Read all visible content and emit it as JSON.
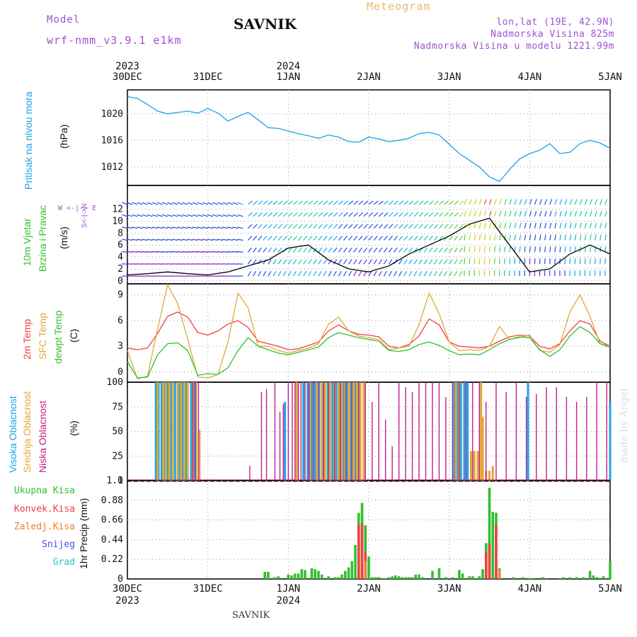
{
  "header": {
    "meteogram": "Meteogram",
    "station": "SAVNIK",
    "model_label": "Model",
    "model_name": "wrf-nmm_v3.9.1  e1km",
    "lonlat": "lon,lat (19E, 42.9N)",
    "altitude": "Nadmorska Visina 825m",
    "model_altitude": "Nadmorska Visina u modelu 1221.99m"
  },
  "footer": "SAVNIK",
  "watermark": "made by Angel",
  "time_axis": {
    "year_start": "2023",
    "year_mid": "2024",
    "labels": [
      "30DEC",
      "31DEC",
      "1JAN",
      "2JAN",
      "3JAN",
      "4JAN",
      "5JAN"
    ]
  },
  "panel_labels": {
    "pressure": {
      "name": "Pritisak na nivou mora",
      "unit": "(hPa)"
    },
    "wind": {
      "name1": "10m Vjetar",
      "name2": "Brzina i Pravac",
      "unit": "(m/s)",
      "compass": "W  <-|->  E",
      "compass_ns": "S<-|->N"
    },
    "temp": {
      "t2m": "2m Temp",
      "sfc": "SFC Temp",
      "dew": "dewpt Temp",
      "unit": "(C)"
    },
    "cloud": {
      "high": "Visoka Oblacnost",
      "mid": "Srednja Oblacnost",
      "low": "Niska  Oblacnost",
      "unit": "(%)"
    },
    "precip": {
      "total": "Ukupna Kisa",
      "conv": "Konvek.Kisa",
      "frozen": "Zaledj.Kisa",
      "snow": "Snijeg",
      "hail": "Grad",
      "unit": "1hr Precip (mm)"
    }
  },
  "colors": {
    "pressure": "#1aa3e8",
    "t2m": "#f04040",
    "sfc": "#e0a838",
    "dew": "#30c030",
    "high": "#1aa3e8",
    "mid": "#e0a838",
    "low": "#c0208a",
    "total": "#30c030",
    "conv": "#f04040",
    "frozen": "#f08030",
    "snow": "#5050e0",
    "hail": "#30c0c0"
  },
  "chart_data": [
    {
      "type": "line",
      "name": "pressure",
      "ylabel": "Pritisak na nivou mora (hPa)",
      "yticks": [
        1012,
        1016,
        1020
      ],
      "ylim": [
        1009.2,
        1023.6
      ],
      "x_hours": [
        0,
        3,
        6,
        9,
        12,
        15,
        18,
        21,
        24,
        27,
        30,
        33,
        36,
        39,
        42,
        45,
        48,
        51,
        54,
        57,
        60,
        63,
        66,
        69,
        72,
        75,
        78,
        81,
        84,
        87,
        90,
        93,
        96,
        99,
        102,
        105,
        108,
        111,
        114,
        117,
        120,
        123,
        126,
        129,
        132,
        135,
        138,
        141,
        144
      ],
      "values": [
        1022.6,
        1022.3,
        1021.4,
        1020.4,
        1020.0,
        1020.2,
        1020.4,
        1020.1,
        1020.8,
        1020.1,
        1018.9,
        1019.6,
        1020.2,
        1019.1,
        1017.9,
        1017.8,
        1017.4,
        1017.0,
        1016.7,
        1016.3,
        1016.8,
        1016.5,
        1015.8,
        1015.7,
        1016.5,
        1016.2,
        1015.8,
        1016.0,
        1016.3,
        1017.0,
        1017.2,
        1016.8,
        1015.4,
        1014.0,
        1013.0,
        1012.0,
        1010.5,
        1009.8,
        1011.6,
        1013.2,
        1014.0,
        1014.5,
        1015.5,
        1014.0,
        1014.2,
        1015.5,
        1016.0,
        1015.6,
        1014.8
      ]
    },
    {
      "type": "line",
      "name": "wind-speed",
      "ylabel": "10m Vjetar Brzina i Pravac (m/s)",
      "yticks": [
        0,
        2,
        4,
        6,
        8,
        10,
        12
      ],
      "ylim": [
        -0.5,
        16
      ],
      "x_hours": [
        0,
        6,
        12,
        18,
        24,
        30,
        36,
        42,
        48,
        54,
        60,
        66,
        72,
        78,
        84,
        90,
        96,
        102,
        108,
        114,
        120,
        126,
        132,
        138,
        144
      ],
      "values": [
        1.0,
        1.2,
        1.5,
        1.2,
        1.0,
        1.5,
        2.5,
        3.5,
        5.5,
        6.0,
        3.5,
        2.0,
        1.5,
        2.5,
        4.5,
        6.0,
        7.5,
        9.5,
        10.5,
        6.0,
        1.5,
        2.0,
        4.5,
        6.0,
        4.5
      ]
    },
    {
      "type": "line",
      "name": "temperature",
      "ylabel": "2m Temp SFC Temp dewpt Temp (C)",
      "yticks": [
        0,
        3,
        6,
        9
      ],
      "ylim": [
        -1.2,
        10.3
      ],
      "x_hours": [
        0,
        3,
        6,
        9,
        12,
        15,
        18,
        21,
        24,
        27,
        30,
        33,
        36,
        39,
        42,
        45,
        48,
        51,
        54,
        57,
        60,
        63,
        66,
        69,
        72,
        75,
        78,
        81,
        84,
        87,
        90,
        93,
        96,
        99,
        102,
        105,
        108,
        111,
        114,
        117,
        120,
        123,
        126,
        129,
        132,
        135,
        138,
        141,
        144
      ],
      "series": [
        {
          "name": "2m Temp",
          "values": [
            2.8,
            2.6,
            2.8,
            4.5,
            6.5,
            7.0,
            6.4,
            4.6,
            4.3,
            4.8,
            5.6,
            6.0,
            5.2,
            3.6,
            3.3,
            3.0,
            2.6,
            2.7,
            3.1,
            3.5,
            4.8,
            5.5,
            4.8,
            4.4,
            4.3,
            4.1,
            3.0,
            2.8,
            3.2,
            4.2,
            6.2,
            5.5,
            3.5,
            3.0,
            2.9,
            2.8,
            3.0,
            3.6,
            4.1,
            4.3,
            4.2,
            3.0,
            2.7,
            3.3,
            4.8,
            6.0,
            5.6,
            3.6,
            3.0
          ]
        },
        {
          "name": "SFC Temp",
          "values": [
            2.5,
            -0.8,
            -0.5,
            5.0,
            10.2,
            8.0,
            3.8,
            -0.6,
            -0.7,
            -0.3,
            3.5,
            9.2,
            7.5,
            3.0,
            3.0,
            2.5,
            2.2,
            2.5,
            2.8,
            3.3,
            5.6,
            6.4,
            4.8,
            4.2,
            4.0,
            3.8,
            2.6,
            2.8,
            3.0,
            5.5,
            9.2,
            6.8,
            3.5,
            2.5,
            2.6,
            2.5,
            3.0,
            5.3,
            3.8,
            4.0,
            4.3,
            2.5,
            2.3,
            3.2,
            7.0,
            9.0,
            6.5,
            3.3,
            2.8
          ]
        },
        {
          "name": "dewpt Temp",
          "values": [
            1.2,
            -0.7,
            -0.6,
            2.0,
            3.3,
            3.4,
            2.5,
            -0.4,
            -0.2,
            -0.3,
            0.5,
            2.5,
            4.0,
            3.0,
            2.6,
            2.2,
            2.0,
            2.3,
            2.6,
            2.9,
            4.0,
            4.6,
            4.3,
            4.0,
            3.8,
            3.6,
            2.5,
            2.4,
            2.6,
            3.2,
            3.5,
            3.1,
            2.5,
            2.0,
            2.1,
            2.0,
            2.6,
            3.3,
            3.8,
            4.1,
            4.0,
            2.6,
            1.8,
            2.6,
            4.2,
            5.3,
            4.6,
            3.3,
            3.0
          ]
        }
      ]
    },
    {
      "type": "bar",
      "name": "cloud-cover",
      "ylabel": "Visoka Oblacnost Srednja Oblacnost Niska Oblacnost (%)",
      "yticks": [
        0,
        25,
        50,
        75,
        100
      ],
      "ylim": [
        0,
        100
      ],
      "series": [
        {
          "name": "Visoka Oblacnost",
          "x_hours": [
            8.5,
            9.3,
            10.2,
            11.0,
            12.0,
            13.0,
            14.2,
            15.5,
            16.5,
            17.5,
            19.0,
            20.0,
            47.0,
            52.5,
            53.8,
            55.0,
            56.0,
            57.2,
            58.5,
            59.8,
            61.2,
            62.3,
            63.5,
            64.5,
            65.5,
            66.8,
            68.0,
            69.0,
            97.5,
            98.5,
            99.5,
            100.5,
            101.5,
            119.5,
            144.0
          ],
          "values": [
            100,
            100,
            100,
            100,
            100,
            100,
            100,
            100,
            100,
            100,
            100,
            100,
            80,
            100,
            100,
            100,
            100,
            100,
            100,
            100,
            100,
            100,
            100,
            100,
            100,
            100,
            100,
            100,
            100,
            100,
            100,
            100,
            100,
            100,
            80
          ]
        },
        {
          "name": "Srednja Oblacnost",
          "x_hours": [
            9.0,
            10.7,
            11.5,
            12.5,
            13.5,
            15.0,
            16.0,
            17.0,
            18.0,
            19.5,
            20.5,
            21.5,
            50.5,
            54.5,
            56.5,
            58.0,
            59.0,
            60.5,
            61.8,
            63.0,
            64.0,
            65.0,
            66.2,
            67.5,
            68.5,
            69.5,
            70.5,
            98.0,
            99.0,
            102.5,
            103.5,
            104.5,
            105.5,
            106.0,
            107.0,
            108.0,
            109.0
          ],
          "values": [
            100,
            100,
            100,
            100,
            100,
            100,
            100,
            100,
            100,
            100,
            100,
            52,
            100,
            100,
            100,
            100,
            100,
            100,
            100,
            100,
            100,
            100,
            100,
            100,
            100,
            100,
            100,
            100,
            100,
            30,
            30,
            30,
            100,
            65,
            10,
            10,
            15
          ]
        },
        {
          "name": "Niska Oblacnost",
          "x_hours": [
            19.5,
            20.3,
            21.2,
            36.5,
            40.0,
            41.5,
            44.0,
            45.5,
            46.5,
            48.0,
            49.2,
            50.0,
            51.0,
            51.8,
            53.0,
            54.2,
            55.5,
            57.0,
            58.5,
            60.0,
            61.8,
            63.5,
            65.2,
            67.0,
            69.0,
            71.0,
            73.0,
            75.0,
            77.0,
            79.0,
            81.0,
            83.0,
            85.0,
            87.0,
            89.0,
            91.0,
            93.0,
            95.0,
            97.0,
            99.0,
            101.0,
            103.0,
            105.0,
            107.0,
            110.0,
            113.0,
            116.0,
            119.0,
            122.0,
            125.0,
            128.0,
            131.0,
            134.0,
            137.0,
            140.0,
            143.0
          ],
          "values": [
            100,
            100,
            100,
            15,
            90,
            93,
            100,
            70,
            78,
            100,
            100,
            100,
            100,
            100,
            100,
            100,
            100,
            100,
            100,
            100,
            100,
            100,
            100,
            100,
            100,
            100,
            80,
            100,
            62,
            35,
            100,
            95,
            90,
            100,
            100,
            100,
            100,
            85,
            100,
            100,
            100,
            100,
            100,
            80,
            100,
            90,
            100,
            85,
            88,
            95,
            95,
            85,
            80,
            85,
            100,
            100
          ]
        }
      ]
    },
    {
      "type": "bar",
      "name": "precipitation",
      "ylabel": "1hr Precip (mm)",
      "yticks": [
        0,
        0.22,
        0.44,
        0.66,
        0.88,
        1.1
      ],
      "ylim": [
        0,
        1.1
      ],
      "series": [
        {
          "name": "Ukupna Kisa",
          "x_hours": [
            41,
            42,
            44,
            45,
            48,
            49,
            50,
            51,
            52,
            53,
            55,
            56,
            57,
            58,
            60,
            62,
            63,
            64,
            65,
            66,
            67,
            68,
            69,
            70,
            71,
            72,
            73,
            74,
            75,
            76,
            77,
            78,
            79,
            80,
            81,
            82,
            83,
            84,
            85,
            86,
            87,
            88,
            91,
            93,
            95,
            97,
            99,
            100,
            102,
            103,
            104,
            105,
            106,
            107,
            108,
            109,
            110,
            111,
            115,
            118,
            120,
            121,
            124,
            125,
            129,
            130,
            132,
            134,
            136,
            138,
            139,
            140,
            142,
            144
          ],
          "values": [
            0.08,
            0.08,
            0.02,
            0.03,
            0.05,
            0.04,
            0.06,
            0.06,
            0.11,
            0.1,
            0.12,
            0.11,
            0.09,
            0.05,
            0.03,
            0.02,
            0.02,
            0.05,
            0.09,
            0.13,
            0.2,
            0.38,
            0.74,
            0.85,
            0.6,
            0.25,
            0.02,
            0.02,
            0.02,
            0.01,
            0.01,
            0.02,
            0.03,
            0.04,
            0.03,
            0.02,
            0.02,
            0.02,
            0.02,
            0.05,
            0.05,
            0.02,
            0.09,
            0.12,
            0.02,
            0.02,
            0.1,
            0.06,
            0.03,
            0.03,
            0.01,
            0.03,
            0.11,
            0.4,
            1.02,
            0.75,
            0.74,
            0.12,
            0.02,
            0.02,
            0.01,
            0.01,
            0.02,
            0.01,
            0.01,
            0.02,
            0.02,
            0.02,
            0.02,
            0.09,
            0.04,
            0.02,
            0.03,
            0.19
          ]
        },
        {
          "name": "Konvek.Kisa",
          "x_hours": [
            69,
            70,
            71,
            107,
            108,
            110
          ],
          "values": [
            0.6,
            0.62,
            0.3,
            0.3,
            0.4,
            0.6
          ]
        },
        {
          "name": "Zaledj.Kisa",
          "x_hours": [
            71,
            111
          ],
          "values": [
            0.2,
            0.1
          ]
        }
      ]
    }
  ]
}
